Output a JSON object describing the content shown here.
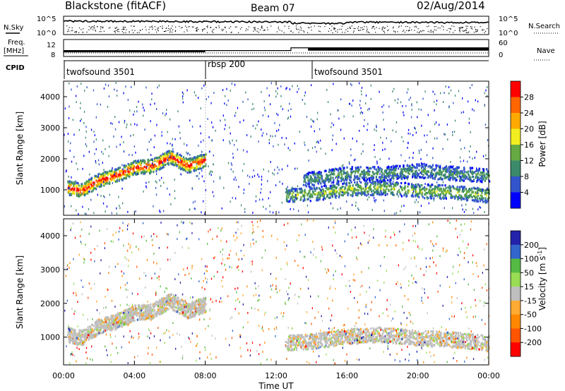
{
  "header": {
    "station": "Blackstone (fitACF)",
    "beam": "Beam 07",
    "date": "02/Aug/2014"
  },
  "noise_panel": {
    "left_label": "N.Sky",
    "right_label": "N.Search",
    "ticks_left": [
      "10^5",
      "10^0"
    ],
    "ticks_right": [
      "10^5",
      "10^0"
    ]
  },
  "freq_panel": {
    "left_label": "Freq.",
    "left_unit": "[MHz]",
    "right_label": "Nave",
    "ticks_left": [
      "12",
      "8"
    ],
    "ticks_right": [
      "60",
      "0"
    ],
    "freq_step": {
      "before": 10.4,
      "after": 11.5,
      "step_time": "12:50"
    }
  },
  "cpid": {
    "label": "CPID",
    "segments": [
      {
        "name": "twofsound 3501",
        "start": "00:00"
      },
      {
        "name": "rbsp 200",
        "start": "08:00"
      },
      {
        "name": "twofsound 3501",
        "start": "14:00"
      }
    ]
  },
  "chart_data": [
    {
      "type": "heatmap",
      "panel": "power",
      "title": "",
      "xlabel": "Time UT",
      "ylabel": "Slant Range [km]",
      "x_ticks": [
        "00:00",
        "04:00",
        "08:00",
        "12:00",
        "16:00",
        "20:00",
        "00:00"
      ],
      "y_ticks": [
        "1000",
        "2000",
        "3000",
        "4000"
      ],
      "xlim_hours": [
        0,
        24
      ],
      "ylim_km": [
        180,
        4500
      ],
      "colorbar": {
        "label": "Power [dB]",
        "ticks": [
          "28",
          "24",
          "20",
          "16",
          "12",
          "8",
          "4"
        ],
        "range": [
          0,
          30
        ],
        "colors": [
          "#0000ff",
          "#3355cc",
          "#3c8a6c",
          "#66aa44",
          "#f2ee20",
          "#ffaa00",
          "#ff6600",
          "#ff0000"
        ]
      },
      "features": [
        {
          "name": "main-band",
          "points": [
            [
              0.2,
              1100
            ],
            [
              1,
              1000
            ],
            [
              2,
              1350
            ],
            [
              3,
              1500
            ],
            [
              4,
              1750
            ],
            [
              5,
              1800
            ],
            [
              6,
              2100
            ],
            [
              7,
              1800
            ],
            [
              8,
              2000
            ]
          ],
          "peak_db": 26
        },
        {
          "name": "afternoon-band",
          "points": [
            [
              12.5,
              850
            ],
            [
              14,
              900
            ],
            [
              16,
              1050
            ],
            [
              18,
              1100
            ],
            [
              20,
              1000
            ],
            [
              22,
              950
            ],
            [
              24,
              850
            ]
          ],
          "peak_db": 12
        },
        {
          "name": "upper-band",
          "points": [
            [
              13.5,
              1350
            ],
            [
              16,
              1550
            ],
            [
              18,
              1550
            ],
            [
              20,
              1650
            ],
            [
              22,
              1550
            ],
            [
              24,
              1500
            ]
          ],
          "peak_db": 8
        }
      ]
    },
    {
      "type": "heatmap",
      "panel": "velocity",
      "title": "",
      "xlabel": "Time UT",
      "ylabel": "Slant Range [km]",
      "x_ticks": [
        "00:00",
        "04:00",
        "08:00",
        "12:00",
        "16:00",
        "20:00",
        "00:00"
      ],
      "y_ticks": [
        "1000",
        "2000",
        "3000",
        "4000"
      ],
      "xlim_hours": [
        0,
        24
      ],
      "ylim_km": [
        180,
        4500
      ],
      "colorbar": {
        "label": "Velocity [m s^-1]",
        "ticks": [
          "200",
          "100",
          "50",
          "15",
          "-15",
          "-50",
          "-100",
          "-200"
        ],
        "range": [
          -250,
          250
        ],
        "colors": [
          "#ff0000",
          "#ff5500",
          "#ff8800",
          "#ffaa33",
          "#bfbfbf",
          "#99dd55",
          "#55bb44",
          "#3366cc",
          "#2222aa"
        ]
      },
      "features": [
        {
          "name": "main-band",
          "points": [
            [
              0.2,
              1100
            ],
            [
              1,
              1000
            ],
            [
              2,
              1350
            ],
            [
              3,
              1500
            ],
            [
              4,
              1750
            ],
            [
              5,
              1800
            ],
            [
              6,
              2100
            ],
            [
              7,
              1800
            ],
            [
              8,
              2000
            ]
          ],
          "velocity_ms": -10
        },
        {
          "name": "afternoon-band",
          "points": [
            [
              12.5,
              850
            ],
            [
              14,
              900
            ],
            [
              16,
              1050
            ],
            [
              18,
              1100
            ],
            [
              20,
              1000
            ],
            [
              22,
              950
            ],
            [
              24,
              850
            ]
          ],
          "velocity_ms": 0
        }
      ]
    }
  ]
}
